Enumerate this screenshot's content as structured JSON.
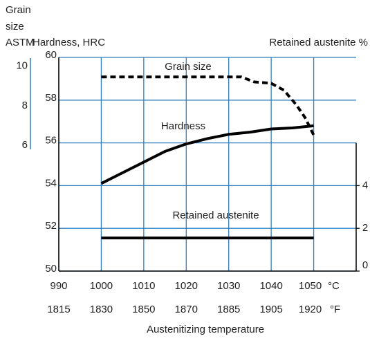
{
  "chart_data": {
    "type": "line",
    "xlabel": "Austenitizing temperature",
    "ylabel": "Hardness, HRC",
    "y2label": "Retained austenite %",
    "y3label": [
      "Grain",
      "size",
      "ASTM"
    ],
    "xunit": "°C",
    "x2unit": "°F",
    "xlim": [
      990,
      1060
    ],
    "xticks": [
      990,
      1000,
      1010,
      1020,
      1030,
      1040,
      1050
    ],
    "x2ticks": [
      {
        "value": 990,
        "label": "1815"
      },
      {
        "value": 1000,
        "label": "1830"
      },
      {
        "value": 1010,
        "label": "1850"
      },
      {
        "value": 1020,
        "label": "1870"
      },
      {
        "value": 1030,
        "label": "1885"
      },
      {
        "value": 1040,
        "label": "1905"
      },
      {
        "value": 1050,
        "label": "1920"
      }
    ],
    "ylim": [
      50,
      60
    ],
    "yticks": [
      50,
      52,
      54,
      56,
      58,
      60
    ],
    "y2lim": [
      0,
      10
    ],
    "y2ticks": [
      0,
      2,
      4
    ],
    "y3lim": [
      5.8,
      10.4
    ],
    "y3ticks": [
      6,
      8,
      10
    ],
    "grid": true,
    "grid_color": "#2f7fc1",
    "series": [
      {
        "name": "Grain size",
        "color": "#000000",
        "style": "dashed",
        "axis": "y3",
        "x": [
          1000,
          1010,
          1020,
          1030,
          1033,
          1036,
          1040,
          1043,
          1046,
          1048,
          1050
        ],
        "values": [
          9.45,
          9.45,
          9.45,
          9.45,
          9.45,
          9.2,
          9.13,
          8.78,
          8.02,
          7.39,
          6.52
        ]
      },
      {
        "name": "Hardness",
        "color": "#000000",
        "style": "solid",
        "axis": "y",
        "x": [
          1000,
          1005,
          1010,
          1015,
          1020,
          1025,
          1030,
          1035,
          1040,
          1045,
          1050
        ],
        "values": [
          54.1,
          54.6,
          55.1,
          55.6,
          55.95,
          56.2,
          56.4,
          56.5,
          56.65,
          56.7,
          56.8
        ]
      },
      {
        "name": "Retained austenite",
        "color": "#000000",
        "style": "solid",
        "axis": "y2",
        "x": [
          1000,
          1050
        ],
        "values": [
          1.55,
          1.55
        ]
      }
    ]
  }
}
